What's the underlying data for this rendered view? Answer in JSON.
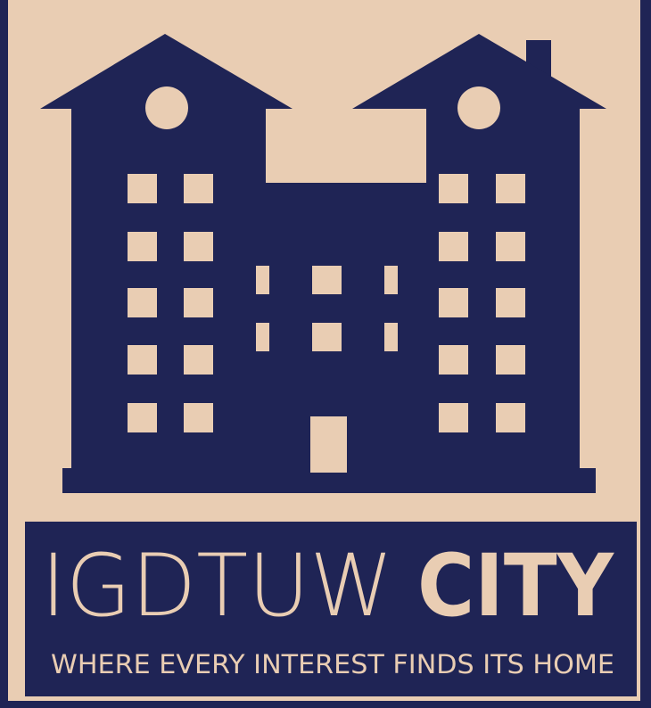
{
  "logo": {
    "name_light": "IGDTUW",
    "name_bold": "CITY",
    "tagline": "WHERE EVERY INTEREST FINDS ITS HOME"
  }
}
